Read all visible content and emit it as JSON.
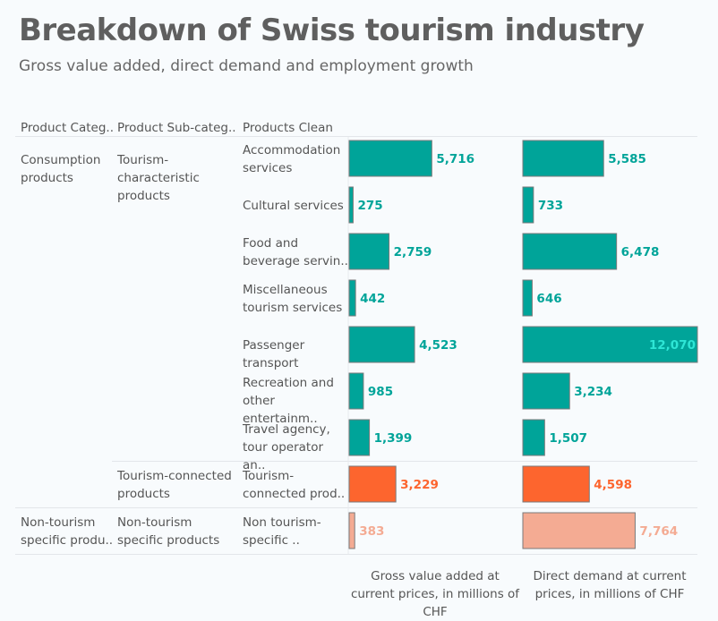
{
  "header": {
    "title": "Breakdown of Swiss tourism industry",
    "subtitle": "Gross value added, direct demand and employment growth"
  },
  "columns": {
    "category": "Product Categ..",
    "subcategory": "Product Sub-categ..",
    "product": "Products Clean"
  },
  "groups": [
    {
      "category": "Consumption products",
      "subcategory": "Tourism-characteristic products"
    },
    {
      "category": "",
      "subcategory": "Tourism-connected products"
    },
    {
      "category": "Non-tourism specific produ..",
      "subcategory": "Non-tourism specific products"
    }
  ],
  "colors": {
    "characteristic": "#00a499",
    "connected": "#fd652e",
    "nontourism": "#f4ab93",
    "label_inside": "#2ee6d6"
  },
  "chart_data": {
    "type": "bar",
    "orientation": "horizontal",
    "title": "Breakdown of Swiss tourism industry",
    "subtitle": "Gross value added, direct demand and employment growth",
    "categories": [
      "Accommodation services",
      "Cultural services",
      "Food and beverage servin..",
      "Miscellaneous tourism services",
      "Passenger transport",
      "Recreation and other entertainm..",
      "Travel agency, tour operator an..",
      "Tourism-connected prod..",
      "Non tourism-specific .."
    ],
    "category_group": [
      "characteristic",
      "characteristic",
      "characteristic",
      "characteristic",
      "characteristic",
      "characteristic",
      "characteristic",
      "connected",
      "nontourism"
    ],
    "series": [
      {
        "name": "Gross value added at current prices, in millions of CHF",
        "values": [
          5716,
          275,
          2759,
          442,
          4523,
          985,
          1399,
          3229,
          383
        ],
        "labels": [
          "5,716",
          "275",
          "2,759",
          "442",
          "4,523",
          "985",
          "1,399",
          "3,229",
          "383"
        ]
      },
      {
        "name": "Direct demand at current prices, in millions of CHF",
        "values": [
          5585,
          733,
          6478,
          646,
          12070,
          3234,
          1507,
          4598,
          7764
        ],
        "labels": [
          "5,585",
          "733",
          "6,478",
          "646",
          "12,070",
          "3,234",
          "1,507",
          "4,598",
          "7,764"
        ]
      }
    ],
    "xlim": [
      0,
      12070
    ],
    "grid": false
  }
}
